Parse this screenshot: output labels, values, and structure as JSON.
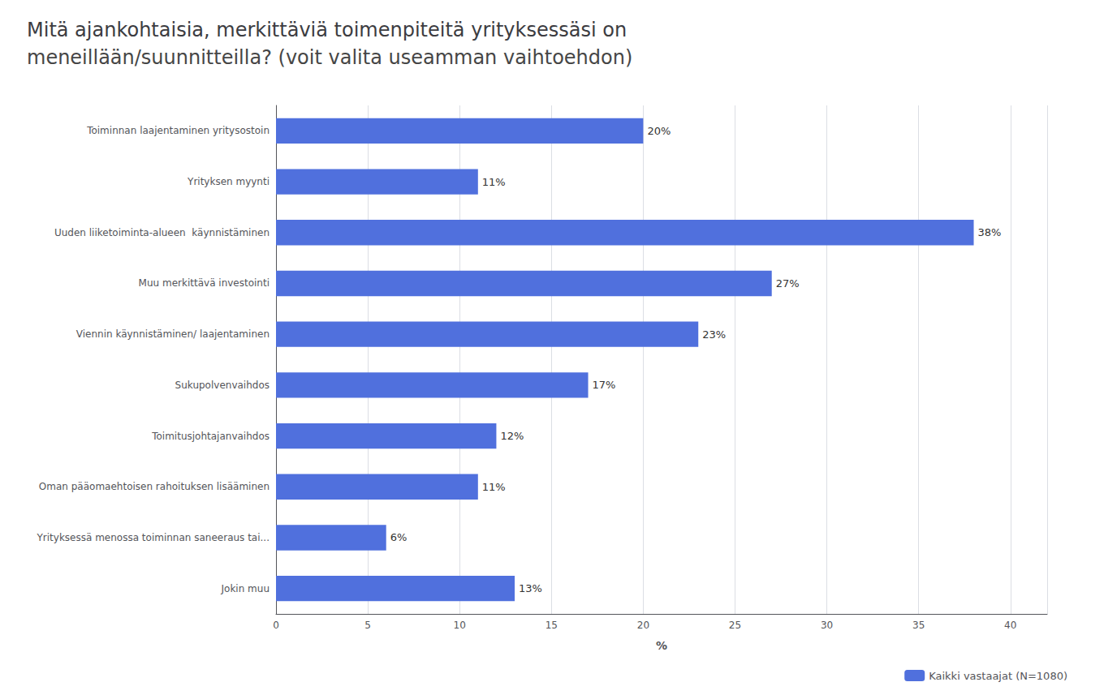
{
  "chart_data": {
    "type": "bar",
    "orientation": "horizontal",
    "title": "Mitä ajankohtaisia, merkittäviä toimenpiteitä yrityksessäsi on",
    "subtitle": "meneillään/suunnitteilla? (voit valita useamman vaihtoehdon)",
    "xlabel": "%",
    "categories": [
      "Toiminnan laajentaminen yritysostoin",
      "Yrityksen myynti",
      "Uuden liiketoiminta-alueen  käynnistäminen",
      "Muu merkittävä investointi",
      "Viennin käynnistäminen/ laajentaminen",
      "Sukupolvenvaihdos",
      "Toimitusjohtajanvaihdos",
      "Oman pääomaehtoisen rahoituksen lisääminen",
      "Yrityksessä menossa toiminnan saneeraus tai...",
      "Jokin muu"
    ],
    "series": [
      {
        "name": "Kaikki vastaajat (N=1080)",
        "values": [
          20,
          11,
          38,
          27,
          23,
          17,
          12,
          11,
          6,
          13
        ],
        "value_labels": [
          "20%",
          "11%",
          "38%",
          "27%",
          "23%",
          "17%",
          "12%",
          "11%",
          "6%",
          "13%"
        ]
      }
    ],
    "xlim": [
      0,
      42
    ],
    "xticks": [
      0,
      5,
      10,
      15,
      20,
      25,
      30,
      35,
      40
    ],
    "grid": true,
    "legend": "lower right",
    "data_labels": true
  }
}
